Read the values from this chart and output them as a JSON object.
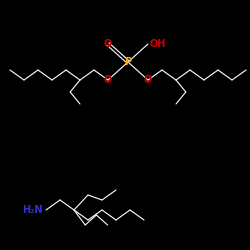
{
  "bg_color": "#000000",
  "p_color": "#ffa500",
  "o_color": "#cc0000",
  "n_color": "#3333cc",
  "bond_color": "#ffffff",
  "figsize": [
    2.5,
    2.5
  ],
  "dpi": 100,
  "p_label": "P",
  "o_double_label": "O",
  "o_left_label": "O",
  "o_right_label": "O",
  "oh_label": "OH",
  "n_label": "H₂N",
  "p_fontsize": 7,
  "o_fontsize": 7,
  "oh_fontsize": 7,
  "n_fontsize": 7
}
